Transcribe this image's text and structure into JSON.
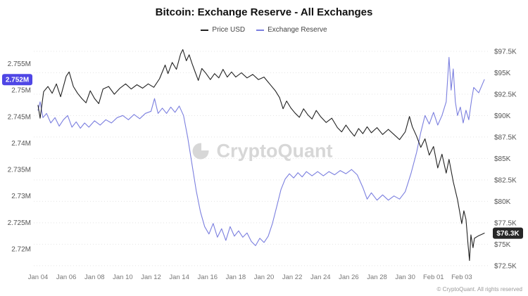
{
  "header": {
    "title": "Bitcoin: Exchange Reserve - All Exchanges"
  },
  "watermark": "CryptoQuant",
  "footer": {
    "copyright": "© CryptoQuant. All rights reserved"
  },
  "chart_data": {
    "type": "line",
    "title": "Bitcoin: Exchange Reserve - All Exchanges",
    "legend_position": "top-center",
    "grid": "horizontal-dotted",
    "x_axis": {
      "min": -0.3,
      "max": 32.0,
      "unit": "date",
      "ticks": [
        {
          "v": 0,
          "label": "Jan 04"
        },
        {
          "v": 2,
          "label": "Jan 06"
        },
        {
          "v": 4,
          "label": "Jan 08"
        },
        {
          "v": 6,
          "label": "Jan 10"
        },
        {
          "v": 8,
          "label": "Jan 12"
        },
        {
          "v": 10,
          "label": "Jan 14"
        },
        {
          "v": 12,
          "label": "Jan 16"
        },
        {
          "v": 14,
          "label": "Jan 18"
        },
        {
          "v": 16,
          "label": "Jan 20"
        },
        {
          "v": 18,
          "label": "Jan 22"
        },
        {
          "v": 20,
          "label": "Jan 24"
        },
        {
          "v": 22,
          "label": "Jan 26"
        },
        {
          "v": 24,
          "label": "Jan 28"
        },
        {
          "v": 26,
          "label": "Jan 30"
        },
        {
          "v": 28,
          "label": "Feb 01"
        },
        {
          "v": 30,
          "label": "Feb 03"
        }
      ]
    },
    "y_left": {
      "unit": "M BTC",
      "min": 2.716,
      "max": 2.7588,
      "ticks": [
        {
          "v": 2.755,
          "label": "2.755M"
        },
        {
          "v": 2.75,
          "label": "2.75M"
        },
        {
          "v": 2.745,
          "label": "2.745M"
        },
        {
          "v": 2.74,
          "label": "2.74M"
        },
        {
          "v": 2.735,
          "label": "2.735M"
        },
        {
          "v": 2.73,
          "label": "2.73M"
        },
        {
          "v": 2.725,
          "label": "2.725M"
        },
        {
          "v": 2.72,
          "label": "2.72M"
        }
      ],
      "current": {
        "v": 2.752,
        "label": "2.752M"
      },
      "badge_color": "#4f46e5"
    },
    "y_right": {
      "unit": "USD",
      "min": 72.0,
      "max": 98.4,
      "ticks": [
        {
          "v": 97.5,
          "label": "$97.5K"
        },
        {
          "v": 95,
          "label": "$95K"
        },
        {
          "v": 92.5,
          "label": "$92.5K"
        },
        {
          "v": 90,
          "label": "$90K"
        },
        {
          "v": 87.5,
          "label": "$87.5K"
        },
        {
          "v": 85,
          "label": "$85K"
        },
        {
          "v": 82.5,
          "label": "$82.5K"
        },
        {
          "v": 80,
          "label": "$80K"
        },
        {
          "v": 77.5,
          "label": "$77.5K"
        },
        {
          "v": 75,
          "label": "$75K"
        },
        {
          "v": 72.5,
          "label": "$72.5K"
        }
      ],
      "current": {
        "v": 76.3,
        "label": "$76.3K"
      },
      "badge_color": "#262626"
    },
    "series": [
      {
        "name": "Price USD",
        "axis": "right",
        "color": "#222222",
        "points": [
          [
            0,
            91.2
          ],
          [
            0.15,
            89.7
          ],
          [
            0.4,
            92.8
          ],
          [
            0.7,
            93.4
          ],
          [
            1,
            92.6
          ],
          [
            1.3,
            93.7
          ],
          [
            1.6,
            92.2
          ],
          [
            2,
            94.6
          ],
          [
            2.2,
            95.1
          ],
          [
            2.5,
            93.4
          ],
          [
            2.8,
            92.6
          ],
          [
            3.1,
            92.0
          ],
          [
            3.4,
            91.5
          ],
          [
            3.7,
            92.9
          ],
          [
            4,
            92.0
          ],
          [
            4.3,
            91.4
          ],
          [
            4.6,
            93.1
          ],
          [
            5,
            93.4
          ],
          [
            5.4,
            92.5
          ],
          [
            5.8,
            93.2
          ],
          [
            6.2,
            93.7
          ],
          [
            6.6,
            93.1
          ],
          [
            7,
            93.6
          ],
          [
            7.4,
            93.2
          ],
          [
            7.8,
            93.7
          ],
          [
            8.2,
            93.3
          ],
          [
            8.6,
            94.3
          ],
          [
            9,
            95.9
          ],
          [
            9.2,
            94.9
          ],
          [
            9.5,
            96.2
          ],
          [
            9.8,
            95.4
          ],
          [
            10.1,
            97.2
          ],
          [
            10.25,
            97.7
          ],
          [
            10.5,
            96.4
          ],
          [
            10.7,
            97.1
          ],
          [
            10.9,
            96.1
          ],
          [
            11.1,
            95.2
          ],
          [
            11.35,
            94.1
          ],
          [
            11.6,
            95.5
          ],
          [
            11.9,
            94.9
          ],
          [
            12.2,
            94.2
          ],
          [
            12.5,
            94.9
          ],
          [
            12.8,
            94.4
          ],
          [
            13.1,
            95.4
          ],
          [
            13.4,
            94.5
          ],
          [
            13.7,
            95.1
          ],
          [
            14,
            94.5
          ],
          [
            14.4,
            95.0
          ],
          [
            14.8,
            94.4
          ],
          [
            15.2,
            94.8
          ],
          [
            15.6,
            94.2
          ],
          [
            16,
            94.5
          ],
          [
            16.4,
            93.7
          ],
          [
            16.8,
            92.9
          ],
          [
            17.1,
            92.1
          ],
          [
            17.35,
            90.8
          ],
          [
            17.6,
            91.7
          ],
          [
            17.9,
            90.9
          ],
          [
            18.2,
            90.3
          ],
          [
            18.5,
            89.8
          ],
          [
            18.8,
            90.8
          ],
          [
            19.1,
            90.1
          ],
          [
            19.4,
            89.6
          ],
          [
            19.7,
            90.6
          ],
          [
            20,
            89.9
          ],
          [
            20.4,
            89.2
          ],
          [
            20.8,
            89.7
          ],
          [
            21.2,
            88.6
          ],
          [
            21.5,
            88.1
          ],
          [
            21.8,
            88.9
          ],
          [
            22.1,
            88.2
          ],
          [
            22.4,
            87.6
          ],
          [
            22.7,
            88.5
          ],
          [
            23,
            87.9
          ],
          [
            23.3,
            88.7
          ],
          [
            23.6,
            88.0
          ],
          [
            24,
            88.6
          ],
          [
            24.4,
            87.8
          ],
          [
            24.8,
            88.4
          ],
          [
            25.2,
            87.8
          ],
          [
            25.6,
            87.2
          ],
          [
            26,
            88.1
          ],
          [
            26.3,
            89.9
          ],
          [
            26.5,
            88.7
          ],
          [
            26.8,
            87.6
          ],
          [
            27.1,
            86.3
          ],
          [
            27.4,
            87.3
          ],
          [
            27.7,
            85.4
          ],
          [
            28,
            86.4
          ],
          [
            28.3,
            83.9
          ],
          [
            28.6,
            85.5
          ],
          [
            28.9,
            83.3
          ],
          [
            29.1,
            84.9
          ],
          [
            29.4,
            82.3
          ],
          [
            29.7,
            80.2
          ],
          [
            30,
            77.4
          ],
          [
            30.15,
            78.9
          ],
          [
            30.3,
            77.9
          ],
          [
            30.45,
            74.9
          ],
          [
            30.55,
            73.1
          ],
          [
            30.65,
            76.1
          ],
          [
            30.8,
            74.6
          ],
          [
            30.9,
            75.7
          ],
          [
            31.2,
            76.0
          ],
          [
            31.6,
            76.3
          ]
        ]
      },
      {
        "name": "Exchange Reserve",
        "axis": "left",
        "color": "#7b7fdf",
        "points": [
          [
            0,
            2.7462
          ],
          [
            0.15,
            2.7478
          ],
          [
            0.35,
            2.7448
          ],
          [
            0.6,
            2.7456
          ],
          [
            0.9,
            2.7438
          ],
          [
            1.2,
            2.7448
          ],
          [
            1.5,
            2.7432
          ],
          [
            1.8,
            2.7444
          ],
          [
            2.1,
            2.7452
          ],
          [
            2.4,
            2.743
          ],
          [
            2.7,
            2.744
          ],
          [
            3,
            2.7428
          ],
          [
            3.3,
            2.7438
          ],
          [
            3.6,
            2.743
          ],
          [
            4,
            2.7442
          ],
          [
            4.4,
            2.7434
          ],
          [
            4.8,
            2.7444
          ],
          [
            5.2,
            2.7438
          ],
          [
            5.6,
            2.7448
          ],
          [
            6,
            2.7452
          ],
          [
            6.4,
            2.7444
          ],
          [
            6.8,
            2.7454
          ],
          [
            7.2,
            2.7446
          ],
          [
            7.6,
            2.7456
          ],
          [
            8,
            2.746
          ],
          [
            8.25,
            2.7484
          ],
          [
            8.5,
            2.7456
          ],
          [
            8.8,
            2.7466
          ],
          [
            9.1,
            2.7456
          ],
          [
            9.4,
            2.7468
          ],
          [
            9.7,
            2.7458
          ],
          [
            10,
            2.747
          ],
          [
            10.3,
            2.7452
          ],
          [
            10.6,
            2.741
          ],
          [
            10.9,
            2.736
          ],
          [
            11.2,
            2.731
          ],
          [
            11.5,
            2.727
          ],
          [
            11.8,
            2.7242
          ],
          [
            12.1,
            2.7228
          ],
          [
            12.4,
            2.7248
          ],
          [
            12.7,
            2.7222
          ],
          [
            13,
            2.7238
          ],
          [
            13.3,
            2.7216
          ],
          [
            13.6,
            2.7242
          ],
          [
            13.9,
            2.7224
          ],
          [
            14.2,
            2.7234
          ],
          [
            14.5,
            2.7222
          ],
          [
            14.8,
            2.723
          ],
          [
            15.1,
            2.7214
          ],
          [
            15.4,
            2.7206
          ],
          [
            15.7,
            2.722
          ],
          [
            16,
            2.7212
          ],
          [
            16.3,
            2.7224
          ],
          [
            16.6,
            2.7248
          ],
          [
            16.9,
            2.728
          ],
          [
            17.2,
            2.7312
          ],
          [
            17.5,
            2.7332
          ],
          [
            17.8,
            2.7342
          ],
          [
            18.1,
            2.7334
          ],
          [
            18.4,
            2.7344
          ],
          [
            18.7,
            2.7336
          ],
          [
            19,
            2.7346
          ],
          [
            19.4,
            2.7338
          ],
          [
            19.8,
            2.7346
          ],
          [
            20.2,
            2.7338
          ],
          [
            20.6,
            2.7346
          ],
          [
            21,
            2.734
          ],
          [
            21.4,
            2.7348
          ],
          [
            21.8,
            2.7342
          ],
          [
            22.2,
            2.735
          ],
          [
            22.6,
            2.734
          ],
          [
            23,
            2.7316
          ],
          [
            23.3,
            2.7294
          ],
          [
            23.6,
            2.7306
          ],
          [
            24,
            2.7292
          ],
          [
            24.4,
            2.7302
          ],
          [
            24.8,
            2.7292
          ],
          [
            25.2,
            2.73
          ],
          [
            25.6,
            2.7294
          ],
          [
            26,
            2.7308
          ],
          [
            26.4,
            2.7342
          ],
          [
            26.8,
            2.7382
          ],
          [
            27.1,
            2.742
          ],
          [
            27.4,
            2.7452
          ],
          [
            27.7,
            2.7436
          ],
          [
            28,
            2.7458
          ],
          [
            28.3,
            2.7434
          ],
          [
            28.6,
            2.7452
          ],
          [
            28.9,
            2.7478
          ],
          [
            29.1,
            2.7562
          ],
          [
            29.25,
            2.75
          ],
          [
            29.4,
            2.754
          ],
          [
            29.55,
            2.7478
          ],
          [
            29.7,
            2.7452
          ],
          [
            29.9,
            2.7468
          ],
          [
            30.1,
            2.7438
          ],
          [
            30.3,
            2.7462
          ],
          [
            30.5,
            2.7444
          ],
          [
            30.7,
            2.7482
          ],
          [
            30.85,
            2.7505
          ],
          [
            31.2,
            2.7495
          ],
          [
            31.6,
            2.752
          ]
        ]
      }
    ]
  }
}
